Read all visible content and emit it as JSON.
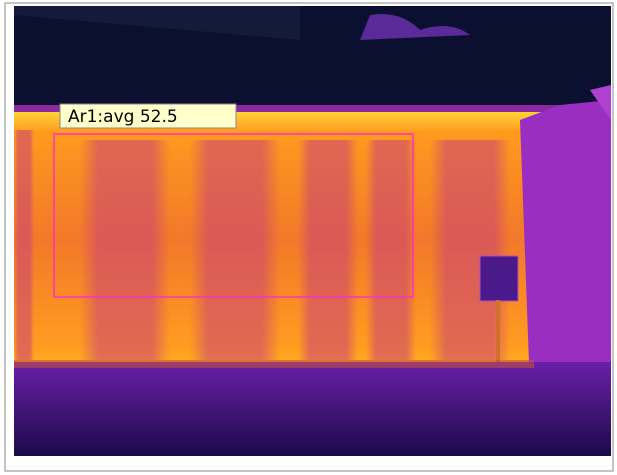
{
  "measurement": {
    "label": "Ar1:avg 52.5"
  }
}
